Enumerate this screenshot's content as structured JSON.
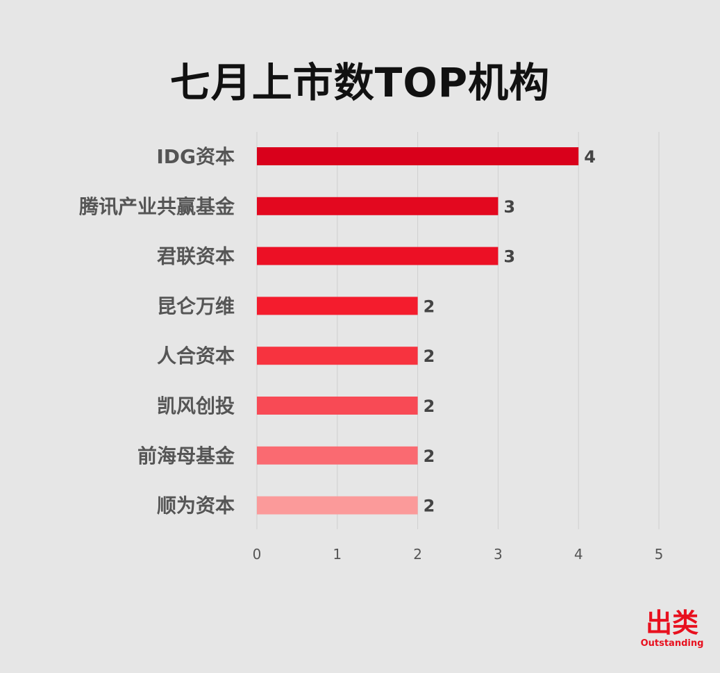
{
  "chart_data": {
    "type": "bar",
    "orientation": "horizontal",
    "title": "七月上市数TOP机构",
    "categories": [
      "IDG资本",
      "腾讯产业共赢基金",
      "君联资本",
      "昆仑万维",
      "人合资本",
      "凯风创投",
      "前海母基金",
      "顺为资本"
    ],
    "values": [
      4,
      3,
      3,
      2,
      2,
      2,
      2,
      2
    ],
    "xlim": [
      0,
      5
    ],
    "xticks": [
      "0",
      "1",
      "2",
      "3",
      "4",
      "5"
    ],
    "grid": true,
    "data_labels": true,
    "bar_colors": [
      "#d9001b",
      "#e3081f",
      "#ec1025",
      "#f41c2d",
      "#f7333f",
      "#f84a55",
      "#fa6a71",
      "#fb9a9a"
    ]
  },
  "logo": {
    "main_text": "出类",
    "sub_text": "Outstanding",
    "color": "#e8101e"
  }
}
